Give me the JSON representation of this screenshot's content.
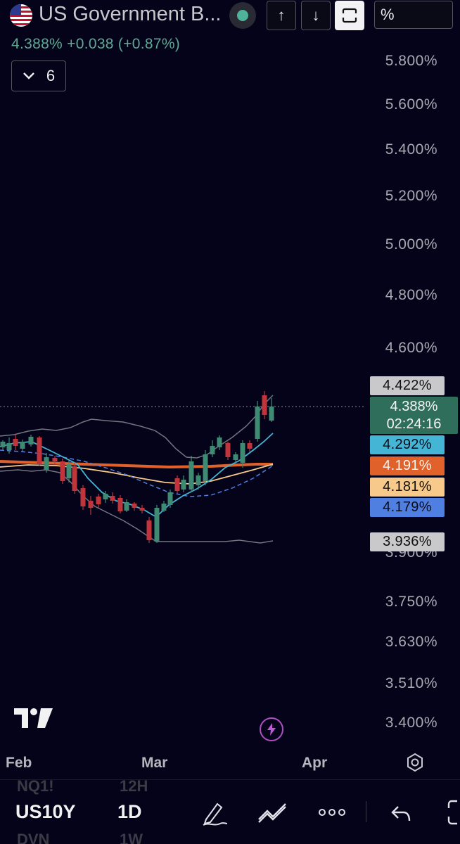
{
  "header": {
    "symbol_name": "US Government B...",
    "quote": "4.388%  +0.038 (+0.87%)",
    "collapse_count": "6",
    "buttons": {
      "up": "↑",
      "down": "↓",
      "percent": "%"
    }
  },
  "price_axis": {
    "labels": [
      "5.800%",
      "5.600%",
      "5.400%",
      "5.200%",
      "5.000%",
      "4.800%",
      "4.600%",
      "3.900%",
      "3.750%",
      "3.630%",
      "3.510%",
      "3.400%"
    ]
  },
  "price_tags": [
    {
      "value": "4.422%",
      "bg": "#c9c9cc",
      "fg": "#111111"
    },
    {
      "value": "4.292%",
      "bg": "#45b5d6",
      "fg": "#0b0b16"
    },
    {
      "value": "4.191%",
      "bg": "#e0622a",
      "fg": "#f5f5f5"
    },
    {
      "value": "4.181%",
      "bg": "#f7c98a",
      "fg": "#111111"
    },
    {
      "value": "4.179%",
      "bg": "#4f7fe0",
      "fg": "#0b0b16"
    },
    {
      "value": "3.936%",
      "bg": "#c9c9cc",
      "fg": "#111111"
    }
  ],
  "last_price": {
    "value": "4.388%",
    "countdown": "02:24:16",
    "bg": "#2e6e5a"
  },
  "time_axis": {
    "labels": [
      "Feb",
      "Mar",
      "Apr"
    ]
  },
  "bottom_bar": {
    "symbol": "US10Y",
    "interval": "1D",
    "ghost_above": [
      "NQ1!",
      "12H"
    ],
    "ghost_below": [
      "DVN",
      "1W"
    ]
  },
  "colors": {
    "up_candle": "#3f8a73",
    "down_candle": "#c0353b",
    "ma_orange": "#e0622a",
    "ma_cream": "#f7c98a",
    "ma_cyan": "#45b5d6",
    "ma_blue_dashed": "#4f7fe0",
    "bollinger": "#7a7a84"
  },
  "icons": [
    "us-flag-icon",
    "arrow-up-icon",
    "arrow-down-icon",
    "fullscreen-icon",
    "chevron-down-icon",
    "tradingview-logo",
    "lightning-icon",
    "settings-icon",
    "pen-icon",
    "trend-icon",
    "more-icon",
    "undo-icon",
    "fullscreen-corner-icon"
  ]
}
